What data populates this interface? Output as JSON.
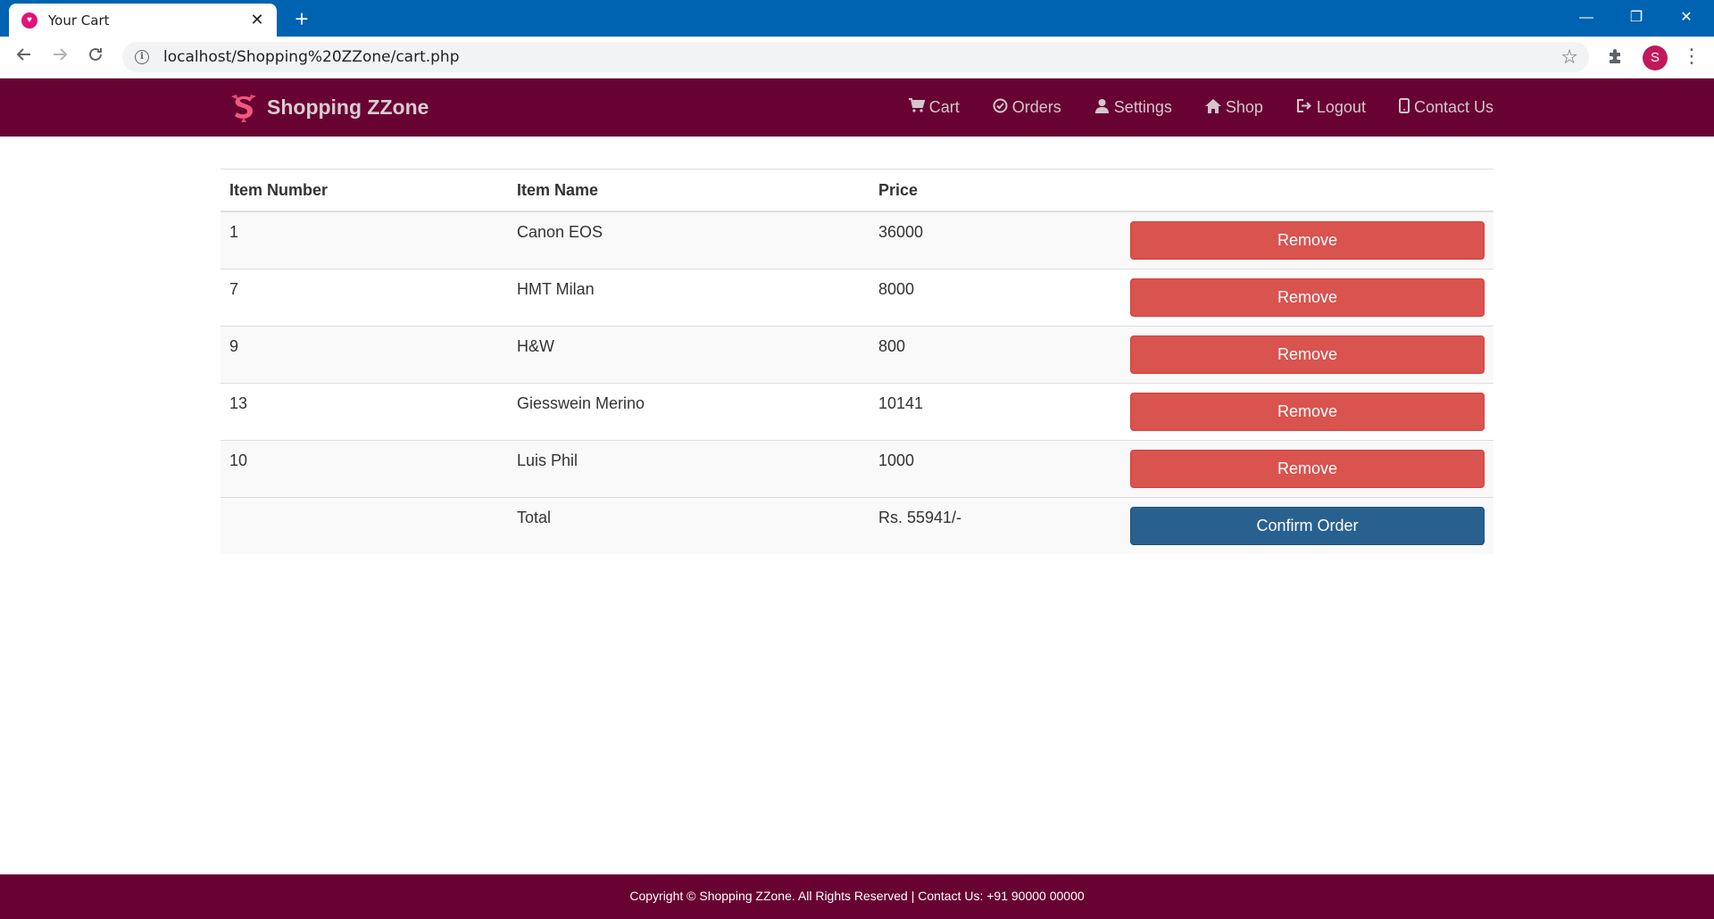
{
  "browser": {
    "tab_title": "Your Cart",
    "tab_close": "✕",
    "new_tab": "+",
    "url": "localhost/Shopping%20ZZone/cart.php",
    "avatar_letter": "S",
    "window_minimize": "—",
    "window_restore": "❐",
    "window_close": "✕"
  },
  "site": {
    "brand": "Shopping ZZone",
    "nav": [
      {
        "label": "Cart",
        "icon": "cart-icon"
      },
      {
        "label": "Orders",
        "icon": "check-circle-icon"
      },
      {
        "label": "Settings",
        "icon": "user-icon"
      },
      {
        "label": "Shop",
        "icon": "home-icon"
      },
      {
        "label": "Logout",
        "icon": "logout-icon"
      },
      {
        "label": "Contact Us",
        "icon": "phone-icon"
      }
    ]
  },
  "cart": {
    "headers": [
      "Item Number",
      "Item Name",
      "Price",
      ""
    ],
    "rows": [
      {
        "number": "1",
        "name": "Canon EOS",
        "price": "36000",
        "action": "Remove"
      },
      {
        "number": "7",
        "name": "HMT Milan",
        "price": "8000",
        "action": "Remove"
      },
      {
        "number": "9",
        "name": "H&W",
        "price": "800",
        "action": "Remove"
      },
      {
        "number": "13",
        "name": "Giesswein Merino",
        "price": "10141",
        "action": "Remove"
      },
      {
        "number": "10",
        "name": "Luis Phil",
        "price": "1000",
        "action": "Remove"
      }
    ],
    "total_label": "Total",
    "total_value": "Rs. 55941/-",
    "confirm_label": "Confirm Order"
  },
  "footer": {
    "text": "Copyright © Shopping ZZone. All Rights Reserved | Contact Us: +91 90000 00000"
  },
  "colors": {
    "browser_blue": "#0063b1",
    "brand_maroon": "#680232",
    "danger": "#d9534f",
    "primary": "#286090"
  }
}
